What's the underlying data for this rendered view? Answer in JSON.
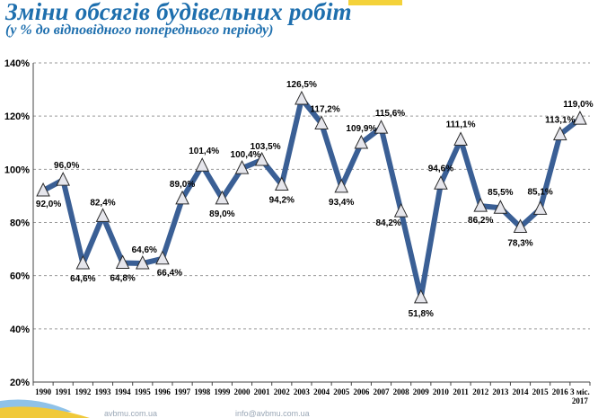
{
  "title": "Зміни обсягів будівельних робіт",
  "subtitle": "(у % до відповідного попереднього періоду)",
  "footer": {
    "site": "avbmu.com.ua",
    "email": "info@avbmu.com.ua"
  },
  "colors": {
    "line": "#3a5f95",
    "marker_fill": "#e6e6ec",
    "marker_stroke": "#2b2b2b",
    "grid": "#9a9a9a",
    "title": "#1e6fae"
  },
  "chart_data": {
    "type": "line",
    "title": "Зміни обсягів будівельних робіт",
    "subtitle": "(у % до відповідного попереднього періоду)",
    "xlabel": "",
    "ylabel": "",
    "ylim": [
      20,
      140
    ],
    "yticks": [
      "20%",
      "40%",
      "60%",
      "80%",
      "100%",
      "120%",
      "140%"
    ],
    "grid": "horizontal dashed",
    "marker": "triangle",
    "categories": [
      "1990",
      "1991",
      "1992",
      "1993",
      "1994",
      "1995",
      "1996",
      "1997",
      "1998",
      "1999",
      "2000",
      "2001",
      "2002",
      "2003",
      "2004",
      "2005",
      "2006",
      "2007",
      "2008",
      "2009",
      "2010",
      "2011",
      "2012",
      "2013",
      "2014",
      "2015",
      "2016",
      "3 міс. 2017"
    ],
    "values": [
      92.0,
      96.0,
      64.6,
      82.4,
      64.8,
      64.6,
      66.4,
      89.0,
      101.4,
      89.0,
      100.4,
      103.5,
      94.2,
      126.5,
      117.2,
      93.4,
      109.9,
      115.6,
      84.2,
      51.8,
      94.6,
      111.1,
      86.2,
      85.5,
      78.3,
      85.1,
      113.1,
      119.0
    ],
    "labels": [
      "92,0%",
      "96,0%",
      "64,6%",
      "82,4%",
      "64,8%",
      "64,6%",
      "66,4%",
      "89,0%",
      "101,4%",
      "89,0%",
      "100,4%",
      "103,5%",
      "94,2%",
      "126,5%",
      "117,2%",
      "93,4%",
      "109,9%",
      "115,6%",
      "84,2%",
      "51,8%",
      "94,6%",
      "111,1%",
      "86,2%",
      "85,5%",
      "78,3%",
      "85,1%",
      "113,1%",
      "119,0%"
    ]
  }
}
